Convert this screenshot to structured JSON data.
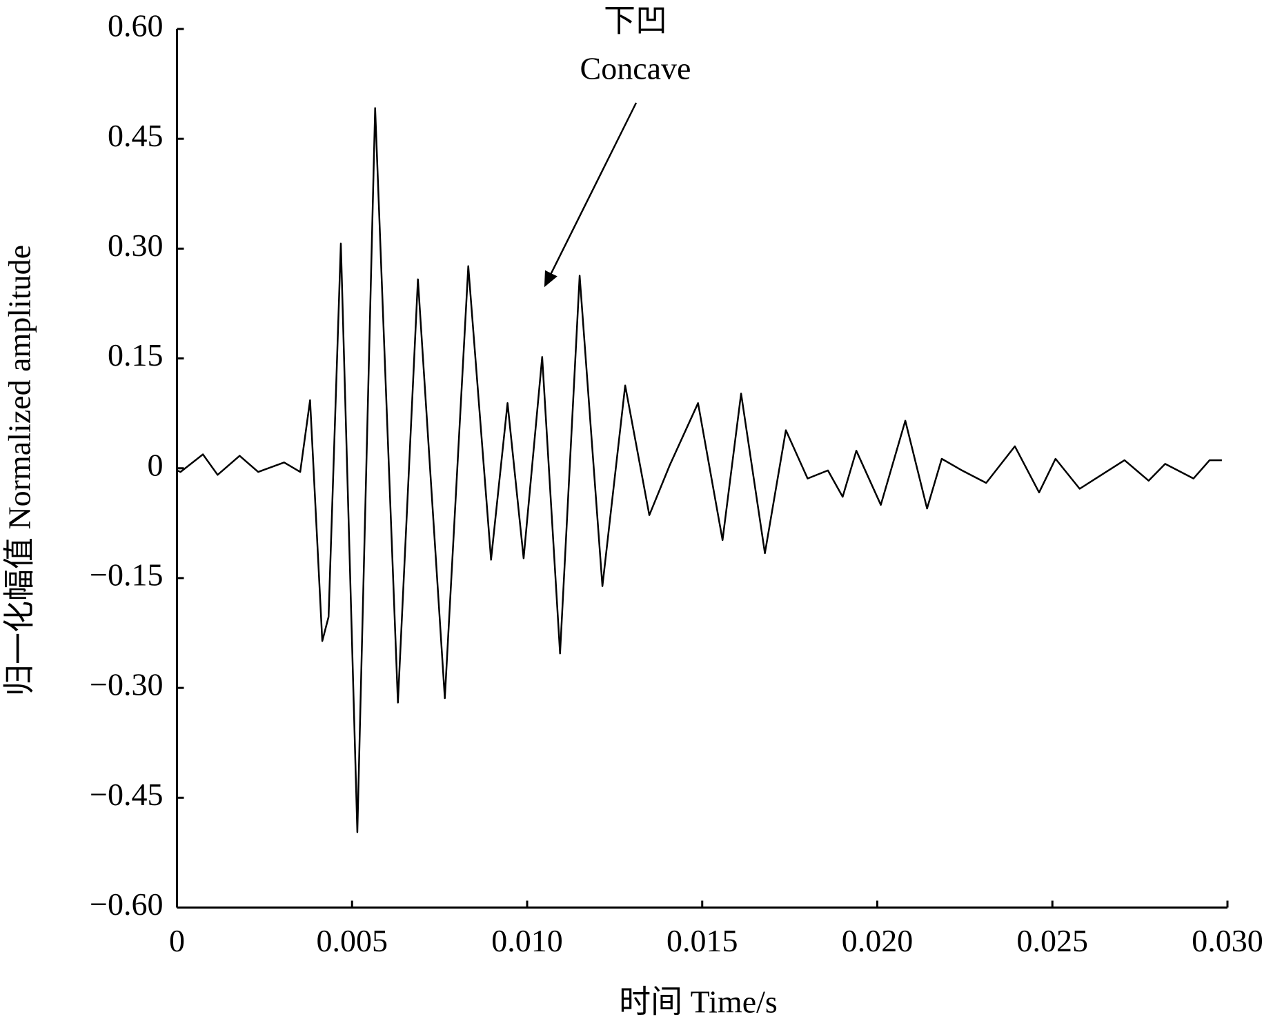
{
  "chart_data": {
    "type": "line",
    "x_label": "时间  Time/s",
    "y_label": "归一化幅值 Normalized amplitude",
    "annotations": [
      {
        "text": "下凹"
      },
      {
        "text": "Concave"
      }
    ],
    "color": "#000000",
    "x": [
      0,
      0.0001,
      0.00074,
      0.00116,
      0.00179,
      0.00232,
      0.00306,
      0.00352,
      0.0038,
      0.00415,
      0.00433,
      0.00468,
      0.00515,
      0.00566,
      0.00631,
      0.00688,
      0.00765,
      0.00832,
      0.00897,
      0.00944,
      0.0099,
      0.01043,
      0.01094,
      0.0115,
      0.01215,
      0.0128,
      0.01349,
      0.01407,
      0.01488,
      0.01558,
      0.01611,
      0.01679,
      0.01739,
      0.01801,
      0.01859,
      0.01901,
      0.0194,
      0.0201,
      0.0208,
      0.02142,
      0.02184,
      0.02242,
      0.02311,
      0.02393,
      0.02462,
      0.02509,
      0.02578,
      0.02624,
      0.02706,
      0.02775,
      0.02822,
      0.02903,
      0.02949,
      0.02984
    ],
    "values": [
      -0.003,
      -0.005,
      0.019,
      -0.009,
      0.017,
      -0.005,
      0.008,
      -0.005,
      0.093,
      -0.236,
      -0.203,
      0.307,
      -0.497,
      0.492,
      -0.32,
      0.258,
      -0.314,
      0.276,
      -0.125,
      0.089,
      -0.123,
      0.152,
      -0.253,
      0.263,
      -0.161,
      0.113,
      -0.064,
      0.004,
      0.089,
      -0.098,
      0.102,
      -0.116,
      0.052,
      -0.014,
      -0.003,
      -0.039,
      0.024,
      -0.05,
      0.065,
      -0.055,
      0.013,
      -0.003,
      -0.02,
      0.03,
      -0.033,
      0.013,
      -0.028,
      -0.014,
      0.011,
      -0.017,
      0.006,
      -0.014,
      0.011,
      0.011
    ],
    "xlim": [
      0,
      0.03
    ],
    "xticks": [
      0,
      0.005,
      {
        "value": 0.01,
        "label": "0.010"
      },
      0.015,
      {
        "value": 0.02,
        "label": "0.020"
      },
      0.025,
      {
        "value": 0.03,
        "label": "0.030"
      }
    ],
    "ylim": [
      -0.6,
      0.6
    ],
    "yticks": [
      {
        "value": 0.6,
        "label": "0.60"
      },
      {
        "value": 0.45,
        "label": "0.45"
      },
      {
        "value": 0.3,
        "label": "0.30"
      },
      {
        "value": 0.15,
        "label": "0.15"
      },
      0,
      {
        "value": -0.15,
        "label": "−0.15"
      },
      {
        "value": -0.3,
        "label": "−0.30"
      },
      {
        "value": -0.45,
        "label": "−0.45"
      },
      {
        "value": -0.6,
        "label": "−0.60"
      }
    ]
  }
}
